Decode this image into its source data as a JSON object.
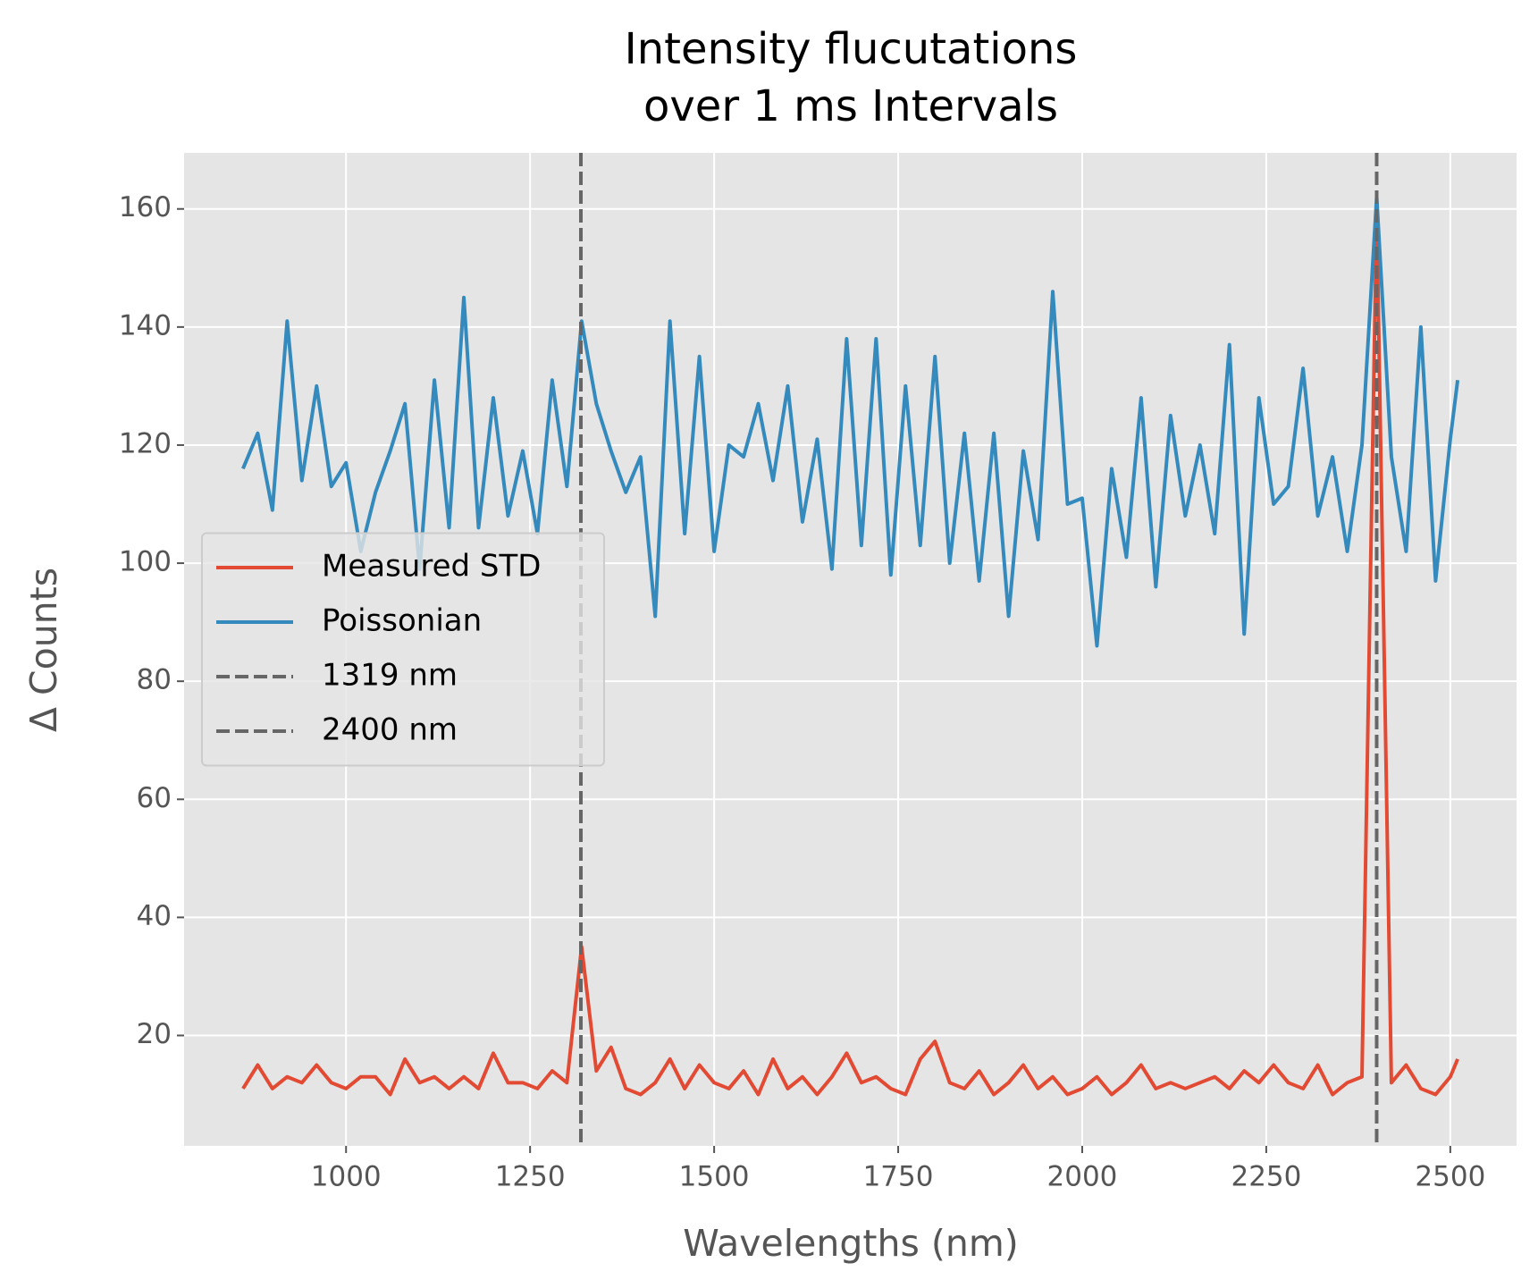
{
  "chart_data": {
    "type": "line",
    "title": [
      "Intensity flucutations",
      "over 1 ms Intervals"
    ],
    "x_label": "Wavelengths (nm)",
    "y_label": "Δ Counts",
    "x": [
      860,
      880,
      900,
      920,
      940,
      960,
      980,
      1000,
      1020,
      1040,
      1060,
      1080,
      1100,
      1120,
      1140,
      1160,
      1180,
      1200,
      1220,
      1240,
      1260,
      1280,
      1300,
      1320,
      1340,
      1360,
      1380,
      1400,
      1420,
      1440,
      1460,
      1480,
      1500,
      1520,
      1540,
      1560,
      1580,
      1600,
      1620,
      1640,
      1660,
      1680,
      1700,
      1720,
      1740,
      1760,
      1780,
      1800,
      1820,
      1840,
      1860,
      1880,
      1900,
      1920,
      1940,
      1960,
      1980,
      2000,
      2020,
      2040,
      2060,
      2080,
      2100,
      2120,
      2140,
      2160,
      2180,
      2200,
      2220,
      2240,
      2260,
      2280,
      2300,
      2320,
      2340,
      2360,
      2380,
      2400,
      2420,
      2440,
      2460,
      2480,
      2500,
      2510
    ],
    "series": [
      {
        "name": "Measured STD",
        "color": "#e24a33",
        "values": [
          11,
          15,
          11,
          13,
          12,
          15,
          12,
          11,
          13,
          13,
          10,
          16,
          12,
          13,
          11,
          13,
          11,
          17,
          12,
          12,
          11,
          14,
          12,
          35,
          14,
          18,
          11,
          10,
          12,
          16,
          11,
          15,
          12,
          11,
          14,
          10,
          16,
          11,
          13,
          10,
          13,
          17,
          12,
          13,
          11,
          10,
          16,
          19,
          12,
          11,
          14,
          10,
          12,
          15,
          11,
          13,
          10,
          11,
          13,
          10,
          12,
          15,
          11,
          12,
          11,
          12,
          13,
          11,
          14,
          12,
          15,
          12,
          11,
          15,
          10,
          12,
          13,
          160,
          12,
          15,
          11,
          10,
          13,
          16
        ]
      },
      {
        "name": "Poissonian",
        "color": "#348abd",
        "values": [
          116,
          122,
          109,
          141,
          114,
          130,
          113,
          117,
          102,
          112,
          119,
          127,
          99,
          131,
          106,
          145,
          106,
          128,
          108,
          119,
          105,
          131,
          113,
          141,
          127,
          119,
          112,
          118,
          91,
          141,
          105,
          135,
          102,
          120,
          118,
          127,
          114,
          130,
          107,
          121,
          99,
          138,
          103,
          138,
          98,
          130,
          103,
          135,
          100,
          122,
          97,
          122,
          91,
          119,
          104,
          146,
          110,
          111,
          86,
          116,
          101,
          128,
          96,
          125,
          108,
          120,
          105,
          137,
          88,
          128,
          110,
          113,
          133,
          108,
          118,
          102,
          120,
          162,
          118,
          102,
          140,
          97,
          121,
          131
        ]
      }
    ],
    "vlines": [
      {
        "name": "1319 nm",
        "x": 1319,
        "color": "#666666"
      },
      {
        "name": "2400 nm",
        "x": 2400,
        "color": "#666666"
      }
    ],
    "xlim": [
      780,
      2590
    ],
    "ylim": [
      1.3,
      169.5
    ],
    "xticks": [
      1000,
      1250,
      1500,
      1750,
      2000,
      2250,
      2500
    ],
    "yticks": [
      20,
      40,
      60,
      80,
      100,
      120,
      140,
      160
    ],
    "grid": true,
    "legend": "center left"
  }
}
